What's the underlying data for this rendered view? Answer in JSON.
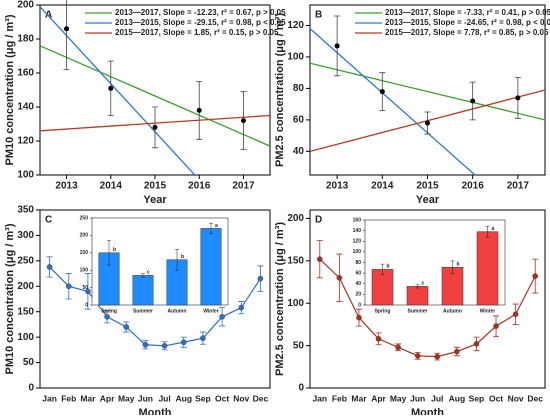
{
  "chart_data": [
    {
      "type": "scatter",
      "label": "A",
      "ylabel": "PM10 concentration (μg / m³)",
      "xlabel": "Year",
      "x": [
        2013,
        2014,
        2015,
        2016,
        2017
      ],
      "values": [
        186,
        151,
        128,
        138,
        132
      ],
      "errors": [
        24,
        16,
        12,
        17,
        17
      ],
      "color": "#000000",
      "xlim": [
        2012.4,
        2017.6
      ],
      "xticks": [
        2013,
        2014,
        2015,
        2016,
        2017
      ],
      "ylim": [
        100,
        200
      ],
      "yticks": [
        100,
        120,
        140,
        160,
        180,
        200
      ],
      "fits": [
        {
          "name": "2013—2017, Slope = -12.23, r² = 0.67, p > 0.05",
          "color": "#3aa02a",
          "x": [
            2012.4,
            2017.6
          ],
          "y": [
            176,
            117
          ]
        },
        {
          "name": "2013—2015, Slope = -29.15, r² = 0.98, p < 0.05",
          "color": "#2f78d0",
          "x": [
            2012.4,
            2015.9
          ],
          "y": [
            199,
            100
          ]
        },
        {
          "name": "2015—2017, Slope = 1.85, r² = 0.15, p > 0.05",
          "color": "#b83a20",
          "x": [
            2012.4,
            2017.6
          ],
          "y": [
            126,
            135
          ]
        }
      ]
    },
    {
      "type": "scatter",
      "label": "B",
      "ylabel": "PM2.5 concentration (μg / m³)",
      "xlabel": "Year",
      "x": [
        2013,
        2014,
        2015,
        2016,
        2017
      ],
      "values": [
        107,
        78,
        58,
        72,
        74
      ],
      "errors": [
        19,
        12,
        7,
        12,
        13
      ],
      "color": "#000000",
      "xlim": [
        2012.4,
        2017.6
      ],
      "xticks": [
        2013,
        2014,
        2015,
        2016,
        2017
      ],
      "ylim": [
        25,
        133
      ],
      "yticks": [
        40,
        60,
        80,
        100,
        120
      ],
      "fits": [
        {
          "name": "2013—2017, Slope = -7.33, r² = 0.41, p > 0.05",
          "color": "#3aa02a",
          "x": [
            2012.4,
            2017.6
          ],
          "y": [
            96,
            60
          ]
        },
        {
          "name": "2013—2015, Slope = -24.65, r² = 0.98, p < 0.05",
          "color": "#2f78d0",
          "x": [
            2012.4,
            2016.05
          ],
          "y": [
            118,
            25
          ]
        },
        {
          "name": "2015—2017, Slope = 7.78, r² = 0.85, p > 0.05",
          "color": "#b83a20",
          "x": [
            2012.4,
            2017.6
          ],
          "y": [
            40,
            79
          ]
        }
      ]
    },
    {
      "type": "line",
      "label": "C",
      "ylabel": "PM10 concentration (μg / m³)",
      "xlabel": "Month",
      "categories": [
        "Jan",
        "Feb",
        "Mar",
        "Apr",
        "May",
        "Jun",
        "Jul",
        "Aug",
        "Sep",
        "Oct",
        "Nov",
        "Dec"
      ],
      "values": [
        238,
        200,
        190,
        140,
        120,
        85,
        83,
        90,
        98,
        140,
        158,
        215
      ],
      "errors": [
        20,
        25,
        35,
        12,
        10,
        8,
        8,
        10,
        12,
        18,
        12,
        25
      ],
      "color": "#2f6fc0",
      "ylim": [
        0,
        350
      ],
      "yticks": [
        0,
        50,
        100,
        150,
        200,
        250,
        300,
        350
      ]
    },
    {
      "type": "bar",
      "categories": [
        "Spring",
        "Summer",
        "Autumn",
        "Winter"
      ],
      "values": [
        150,
        85,
        130,
        220
      ],
      "errors": [
        35,
        5,
        30,
        15
      ],
      "annotations": [
        "b",
        "c",
        "b",
        "a"
      ],
      "color": "#1e8cff",
      "ylim": [
        0,
        250
      ],
      "yticks": [
        0,
        50,
        100,
        150,
        200,
        250
      ]
    },
    {
      "type": "line",
      "label": "D",
      "ylabel": "PM2.5 concentration (μg / m³)",
      "xlabel": "Month",
      "categories": [
        "Jan",
        "Feb",
        "Mar",
        "Apr",
        "May",
        "Jun",
        "Jul",
        "Aug",
        "Sep",
        "Oct",
        "Nov",
        "Dec"
      ],
      "values": [
        152,
        130,
        83,
        58,
        48,
        38,
        37,
        43,
        52,
        73,
        87,
        132
      ],
      "errors": [
        22,
        28,
        10,
        7,
        4,
        4,
        4,
        5,
        8,
        12,
        12,
        20
      ],
      "color": "#a83220",
      "ylim": [
        0,
        210
      ],
      "yticks": [
        0,
        50,
        100,
        150,
        200
      ]
    },
    {
      "type": "bar",
      "categories": [
        "Spring",
        "Summer",
        "Autumn",
        "Winter"
      ],
      "values": [
        67,
        35,
        71,
        138
      ],
      "errors": [
        10,
        3,
        12,
        10
      ],
      "annotations": [
        "b",
        "c",
        "b",
        "a"
      ],
      "color": "#f04040",
      "ylim": [
        0,
        160
      ],
      "yticks": [
        0,
        20,
        40,
        60,
        80,
        100,
        120,
        140,
        160
      ]
    }
  ]
}
